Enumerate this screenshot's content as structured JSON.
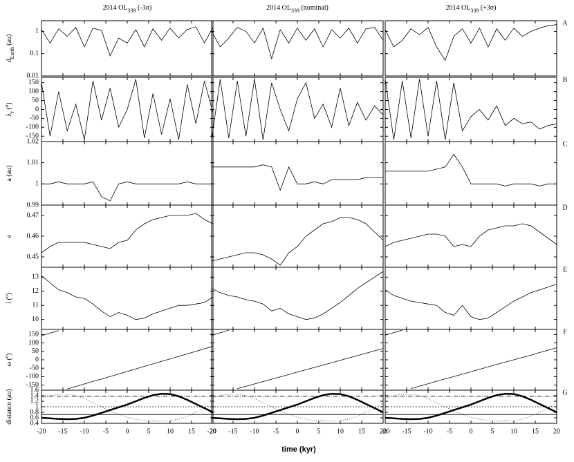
{
  "columns": [
    [
      {
        "text": "2014 OL"
      },
      {
        "text": "339",
        "sub": true
      },
      {
        "text": " (-3σ)"
      }
    ],
    [
      {
        "text": "2014 OL"
      },
      {
        "text": "339",
        "sub": true
      },
      {
        "text": " (nominal)"
      }
    ],
    [
      {
        "text": "2014 OL"
      },
      {
        "text": "339",
        "sub": true
      },
      {
        "text": " (+3σ)"
      }
    ]
  ],
  "xlabel": "time (kyr)",
  "x": [
    -20,
    -18,
    -16,
    -14,
    -12,
    -10,
    -8,
    -6,
    -4,
    -2,
    0,
    2,
    4,
    6,
    8,
    10,
    12,
    14,
    16,
    18,
    20
  ],
  "xlim": [
    -20,
    20
  ],
  "xticks": [
    -20,
    -15,
    -10,
    -5,
    0,
    5,
    10,
    15,
    20
  ],
  "chart_data": [
    {
      "type": "line",
      "letter": "A",
      "log": true,
      "ylabel": [
        {
          "text": "d"
        },
        {
          "text": "Earth",
          "sub": true
        },
        {
          "text": " (au)"
        }
      ],
      "ylim": [
        0.01,
        3
      ],
      "yticks": [
        0.01,
        0.1,
        1
      ],
      "panels": [
        {
          "series": [
            {
              "values": [
                1.2,
                0.3,
                1.3,
                0.6,
                1.5,
                0.2,
                1.4,
                1.1,
                0.08,
                0.5,
                0.3,
                1.2,
                0.2,
                1.3,
                0.4,
                1.4,
                0.5,
                1.2,
                1.6,
                0.3,
                1.5
              ]
            }
          ]
        },
        {
          "series": [
            {
              "values": [
                1.0,
                0.2,
                0.5,
                1.5,
                1.0,
                0.3,
                1.4,
                0.06,
                1.2,
                0.3,
                1.4,
                0.4,
                1.3,
                0.2,
                1.2,
                0.5,
                1.4,
                0.3,
                1.3,
                1.5,
                0.4
              ]
            }
          ]
        },
        {
          "series": [
            {
              "values": [
                1.2,
                0.2,
                0.4,
                1.3,
                0.7,
                1.5,
                0.2,
                0.05,
                0.6,
                1.3,
                0.3,
                1.4,
                0.2,
                1.3,
                0.4,
                1.4,
                0.6,
                1.0,
                1.4,
                1.8,
                2.0
              ]
            }
          ]
        }
      ]
    },
    {
      "type": "line",
      "letter": "B",
      "ylabel": [
        {
          "text": "λ"
        },
        {
          "text": "r",
          "sub": true
        },
        {
          "text": " ("
        },
        {
          "text": "o",
          "sup": true
        },
        {
          "text": ")"
        }
      ],
      "ylim": [
        -180,
        180
      ],
      "yticks": [
        -150,
        -100,
        -50,
        0,
        50,
        100,
        150
      ],
      "panels": [
        {
          "series": [
            {
              "values": [
                150,
                -150,
                100,
                -120,
                30,
                -170,
                160,
                -60,
                120,
                -100,
                0,
                170,
                -160,
                90,
                -140,
                60,
                -170,
                140,
                -80,
                160,
                -20
              ]
            }
          ]
        },
        {
          "series": [
            {
              "values": [
                -170,
                170,
                -160,
                160,
                -150,
                170,
                -170,
                150,
                0,
                -120,
                60,
                150,
                -50,
                30,
                -100,
                120,
                -90,
                40,
                -60,
                20,
                -30
              ]
            }
          ]
        },
        {
          "series": [
            {
              "values": [
                170,
                -170,
                160,
                -160,
                170,
                -150,
                160,
                -170,
                150,
                -120,
                -40,
                0,
                -60,
                20,
                -90,
                -50,
                -80,
                -70,
                -110,
                -90,
                -80
              ]
            }
          ]
        }
      ]
    },
    {
      "type": "line",
      "letter": "C",
      "ylabel": [
        {
          "text": "a (au)"
        }
      ],
      "ylim": [
        0.99,
        1.02
      ],
      "yticks": [
        0.99,
        1,
        1.01,
        1.02
      ],
      "panels": [
        {
          "series": [
            {
              "values": [
                1.0,
                1.0,
                1.001,
                1.0,
                1.0,
                1.0,
                1.001,
                0.994,
                0.992,
                1.0,
                1.001,
                1.0,
                1.0,
                1.0,
                1.0,
                1.0,
                1.0,
                1.001,
                1.0,
                1.0,
                1.0
              ]
            }
          ]
        },
        {
          "series": [
            {
              "values": [
                1.008,
                1.008,
                1.008,
                1.008,
                1.008,
                1.008,
                1.009,
                1.008,
                0.997,
                1.008,
                1.0,
                1.0,
                1.001,
                1.0,
                1.002,
                1.002,
                1.002,
                1.002,
                1.003,
                1.003,
                1.003
              ]
            }
          ]
        },
        {
          "series": [
            {
              "values": [
                1.006,
                1.006,
                1.006,
                1.006,
                1.006,
                1.006,
                1.007,
                1.008,
                1.014,
                1.008,
                1.0,
                1.0,
                1.0,
                1.0,
                0.999,
                1.0,
                1.0,
                1.0,
                0.999,
                1.0,
                1.0
              ]
            }
          ]
        }
      ]
    },
    {
      "type": "line",
      "letter": "D",
      "ylabel": [
        {
          "text": "e"
        }
      ],
      "ylim": [
        0.445,
        0.475
      ],
      "yticks": [
        0.45,
        0.46,
        0.47
      ],
      "panels": [
        {
          "series": [
            {
              "values": [
                0.452,
                0.455,
                0.457,
                0.457,
                0.457,
                0.457,
                0.456,
                0.455,
                0.454,
                0.457,
                0.458,
                0.463,
                0.466,
                0.468,
                0.469,
                0.47,
                0.47,
                0.47,
                0.471,
                0.468,
                0.466
              ]
            }
          ]
        },
        {
          "series": [
            {
              "values": [
                0.448,
                0.449,
                0.45,
                0.451,
                0.452,
                0.452,
                0.451,
                0.449,
                0.446,
                0.452,
                0.455,
                0.46,
                0.463,
                0.466,
                0.467,
                0.469,
                0.469,
                0.468,
                0.466,
                0.462,
                0.458
              ]
            }
          ]
        },
        {
          "series": [
            {
              "values": [
                0.455,
                0.457,
                0.458,
                0.459,
                0.46,
                0.461,
                0.461,
                0.46,
                0.455,
                0.456,
                0.455,
                0.46,
                0.463,
                0.464,
                0.465,
                0.465,
                0.466,
                0.465,
                0.462,
                0.459,
                0.456
              ]
            }
          ]
        }
      ]
    },
    {
      "type": "line",
      "letter": "E",
      "ylabel": [
        {
          "text": "i ("
        },
        {
          "text": "o",
          "sup": true
        },
        {
          "text": ")"
        }
      ],
      "ylim": [
        9.3,
        13.7
      ],
      "yticks": [
        10,
        11,
        12,
        13
      ],
      "panels": [
        {
          "series": [
            {
              "values": [
                13.1,
                12.6,
                12.1,
                11.9,
                11.6,
                11.5,
                11.1,
                10.6,
                10.2,
                10.5,
                10.3,
                10.0,
                10.1,
                10.4,
                10.6,
                10.8,
                11.0,
                11.0,
                11.1,
                11.2,
                11.6
              ]
            }
          ]
        },
        {
          "series": [
            {
              "values": [
                12.2,
                11.9,
                11.7,
                11.6,
                11.4,
                11.3,
                11.1,
                10.6,
                10.8,
                10.4,
                10.2,
                10.0,
                10.1,
                10.4,
                10.8,
                11.2,
                11.7,
                12.2,
                12.6,
                13.0,
                13.4
              ]
            }
          ]
        },
        {
          "series": [
            {
              "values": [
                12.1,
                11.7,
                11.5,
                11.3,
                11.2,
                11.1,
                11.0,
                10.5,
                10.3,
                11.0,
                10.2,
                10.0,
                10.1,
                10.5,
                10.9,
                11.3,
                11.6,
                11.9,
                12.1,
                12.3,
                12.5
              ]
            }
          ]
        }
      ]
    },
    {
      "type": "line",
      "letter": "F",
      "wrap": true,
      "ylabel": [
        {
          "text": "ω ("
        },
        {
          "text": "o",
          "sup": true
        },
        {
          "text": ")"
        }
      ],
      "ylim": [
        -180,
        180
      ],
      "yticks": [
        -150,
        -100,
        -50,
        0,
        50,
        100,
        150
      ],
      "panels": [
        {
          "series": [
            {
              "values": [
                143,
                158,
                173,
                -173,
                -158,
                -143,
                -128,
                -114,
                -99,
                -84,
                -69,
                -54,
                -39,
                -24,
                -9,
                5,
                20,
                35,
                50,
                65,
                80
              ]
            }
          ]
        },
        {
          "series": [
            {
              "values": [
                145,
                160,
                175,
                -171,
                -157,
                -143,
                -129,
                -115,
                -101,
                -87,
                -73,
                -59,
                -45,
                -31,
                -17,
                -3,
                11,
                25,
                39,
                53,
                67
              ]
            }
          ]
        },
        {
          "series": [
            {
              "values": [
                146,
                161,
                176,
                -170,
                -156,
                -142,
                -127,
                -113,
                -99,
                -85,
                -71,
                -56,
                -42,
                -28,
                -14,
                0,
                14,
                28,
                43,
                57,
                71
              ]
            }
          ]
        }
      ]
    },
    {
      "type": "line",
      "letter": "G",
      "ylabel": [
        {
          "text": "distance (au)"
        }
      ],
      "ylim": [
        0.4,
        1.6
      ],
      "yticks": [
        0.4,
        0.6,
        0.8,
        1,
        1.2,
        1.4,
        1.6
      ],
      "hlines": [
        {
          "value": 0.72,
          "dash": "none"
        },
        {
          "value": 1,
          "dash": "2 2"
        },
        {
          "value": 1.38,
          "dash": "6 2 1 2"
        }
      ],
      "panels": [
        {
          "series": [
            {
              "width": 2.5,
              "values": [
                0.6,
                0.58,
                0.56,
                0.55,
                0.56,
                0.6,
                0.68,
                0.78,
                0.88,
                0.98,
                1.08,
                1.2,
                1.32,
                1.42,
                1.47,
                1.46,
                1.38,
                1.25,
                1.1,
                0.95,
                0.8
              ]
            },
            {
              "width": 0.6,
              "dash": "1 2",
              "values": [
                1.3,
                1.4,
                1.45,
                1.45,
                1.4,
                1.3,
                1.15,
                1.0,
                0.85,
                0.72,
                0.62,
                0.55,
                0.5,
                0.48,
                0.48,
                0.5,
                0.55,
                0.65,
                0.8,
                0.95,
                1.15
              ]
            }
          ]
        },
        {
          "series": [
            {
              "width": 2.5,
              "values": [
                0.6,
                0.58,
                0.56,
                0.55,
                0.56,
                0.6,
                0.68,
                0.78,
                0.88,
                0.98,
                1.08,
                1.2,
                1.32,
                1.42,
                1.47,
                1.46,
                1.38,
                1.25,
                1.1,
                0.95,
                0.8
              ]
            },
            {
              "width": 0.6,
              "dash": "1 2",
              "values": [
                1.3,
                1.4,
                1.45,
                1.45,
                1.4,
                1.3,
                1.15,
                1.0,
                0.85,
                0.72,
                0.62,
                0.55,
                0.5,
                0.48,
                0.48,
                0.5,
                0.55,
                0.65,
                0.8,
                0.95,
                1.15
              ]
            }
          ]
        },
        {
          "series": [
            {
              "width": 2.5,
              "values": [
                0.6,
                0.58,
                0.56,
                0.55,
                0.56,
                0.6,
                0.68,
                0.78,
                0.88,
                0.98,
                1.08,
                1.2,
                1.32,
                1.42,
                1.47,
                1.46,
                1.38,
                1.25,
                1.1,
                0.95,
                0.8
              ]
            },
            {
              "width": 0.6,
              "dash": "1 2",
              "values": [
                1.3,
                1.4,
                1.45,
                1.45,
                1.4,
                1.3,
                1.15,
                1.0,
                0.85,
                0.72,
                0.62,
                0.55,
                0.5,
                0.48,
                0.48,
                0.5,
                0.55,
                0.65,
                0.8,
                0.95,
                1.15
              ]
            }
          ]
        }
      ]
    }
  ]
}
